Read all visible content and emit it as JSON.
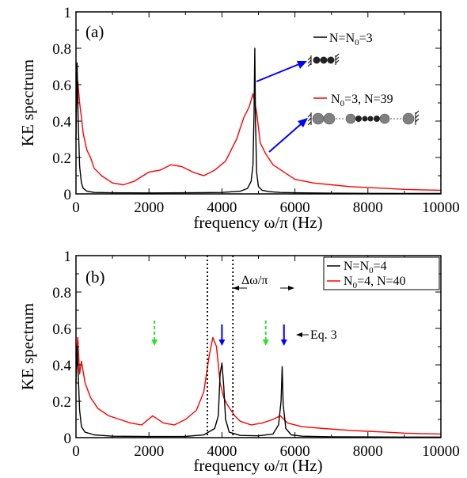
{
  "chart_data": [
    {
      "type": "line",
      "panel_label": "(a)",
      "xlabel": "frequency ω/π (Hz)",
      "ylabel": "KE spectrum",
      "xlim": [
        0,
        10000
      ],
      "ylim": [
        0,
        1
      ],
      "x_ticks": [
        "0",
        "2000",
        "4000",
        "6000",
        "8000",
        "10000"
      ],
      "y_ticks": [
        "0",
        "0.2",
        "0.4",
        "0.6",
        "0.8",
        "1"
      ],
      "series": [
        {
          "name": "N=N0=3",
          "legend_label": {
            "pre": "N=N",
            "sub": "0",
            "post": "=3"
          },
          "color": "#000000",
          "x": [
            0,
            30,
            60,
            100,
            150,
            200,
            300,
            500,
            1000,
            2000,
            3000,
            4000,
            4500,
            4700,
            4800,
            4850,
            4880,
            4900,
            4920,
            4950,
            5000,
            5100,
            5300,
            5600,
            6000,
            7000,
            8000,
            9000,
            10000
          ],
          "y": [
            0.3,
            0.72,
            0.4,
            0.15,
            0.06,
            0.03,
            0.015,
            0.008,
            0.006,
            0.005,
            0.006,
            0.008,
            0.015,
            0.03,
            0.07,
            0.16,
            0.45,
            0.8,
            0.4,
            0.12,
            0.04,
            0.02,
            0.012,
            0.008,
            0.006,
            0.004,
            0.003,
            0.002,
            0.002
          ]
        },
        {
          "name": "N0=3, N=39",
          "legend_label": {
            "pre": "N",
            "sub": "0",
            "post": "=3, N=39"
          },
          "color": "#ff0000",
          "x": [
            0,
            50,
            100,
            150,
            200,
            300,
            400,
            500,
            700,
            1000,
            1300,
            1600,
            2000,
            2300,
            2600,
            2900,
            3200,
            3500,
            3800,
            4100,
            4400,
            4600,
            4750,
            4850,
            4950,
            5050,
            5200,
            5400,
            5700,
            6000,
            6500,
            7000,
            7500,
            8000,
            8500,
            9000,
            9500,
            10000
          ],
          "y": [
            0.45,
            0.62,
            0.5,
            0.42,
            0.33,
            0.24,
            0.2,
            0.14,
            0.1,
            0.06,
            0.05,
            0.07,
            0.12,
            0.13,
            0.16,
            0.15,
            0.12,
            0.1,
            0.13,
            0.18,
            0.3,
            0.42,
            0.48,
            0.55,
            0.45,
            0.28,
            0.22,
            0.16,
            0.12,
            0.08,
            0.06,
            0.05,
            0.04,
            0.035,
            0.03,
            0.025,
            0.022,
            0.02
          ]
        }
      ],
      "annotations": [
        "N=N0=3 chain inset",
        "N0=3, N=39 chain inset"
      ]
    },
    {
      "type": "line",
      "panel_label": "(b)",
      "xlabel": "frequency ω/π (Hz)",
      "ylabel": "KE spectrum",
      "xlim": [
        0,
        10000
      ],
      "ylim": [
        0,
        1
      ],
      "x_ticks": [
        "0",
        "2000",
        "4000",
        "6000",
        "8000",
        "10000"
      ],
      "y_ticks": [
        "0",
        "0.2",
        "0.4",
        "0.6",
        "0.8",
        "1"
      ],
      "series": [
        {
          "name": "N=N0=4",
          "legend_label": {
            "pre": "N=N",
            "sub": "0",
            "post": "=4"
          },
          "color": "#000000",
          "x": [
            0,
            30,
            60,
            100,
            150,
            250,
            500,
            1000,
            2000,
            3000,
            3500,
            3800,
            3900,
            3950,
            4000,
            4050,
            4100,
            4200,
            4500,
            5000,
            5400,
            5550,
            5620,
            5650,
            5680,
            5750,
            5900,
            6200,
            7000,
            8000,
            9000,
            10000
          ],
          "y": [
            0.3,
            0.5,
            0.35,
            0.15,
            0.06,
            0.03,
            0.015,
            0.008,
            0.006,
            0.007,
            0.015,
            0.05,
            0.12,
            0.35,
            0.41,
            0.28,
            0.1,
            0.03,
            0.012,
            0.01,
            0.02,
            0.07,
            0.2,
            0.39,
            0.18,
            0.05,
            0.015,
            0.008,
            0.005,
            0.004,
            0.003,
            0.003
          ]
        },
        {
          "name": "N0=4, N=40",
          "legend_label": {
            "pre": "N",
            "sub": "0",
            "post": "=4, N=40"
          },
          "color": "#ff0000",
          "x": [
            0,
            50,
            100,
            150,
            250,
            400,
            600,
            900,
            1200,
            1500,
            1800,
            2100,
            2400,
            2700,
            3000,
            3300,
            3500,
            3650,
            3750,
            3850,
            3950,
            4050,
            4150,
            4250,
            4350,
            4500,
            4800,
            5100,
            5400,
            5600,
            5800,
            6200,
            6800,
            7500,
            8000,
            8500,
            9000,
            9500,
            10000
          ],
          "y": [
            0.45,
            0.55,
            0.35,
            0.42,
            0.3,
            0.22,
            0.16,
            0.12,
            0.1,
            0.08,
            0.07,
            0.12,
            0.08,
            0.07,
            0.1,
            0.15,
            0.25,
            0.45,
            0.55,
            0.5,
            0.3,
            0.22,
            0.18,
            0.15,
            0.12,
            0.09,
            0.07,
            0.08,
            0.1,
            0.12,
            0.08,
            0.06,
            0.05,
            0.04,
            0.035,
            0.03,
            0.025,
            0.022,
            0.02
          ]
        }
      ],
      "annotations": [
        {
          "text": "Δω/π",
          "type": "bracket",
          "x_left": 3600,
          "x_right": 4300
        },
        {
          "text": "Eq. 3",
          "type": "arrow-label"
        },
        {
          "type": "blue-arrow",
          "x": 4000,
          "color": "#0000ff"
        },
        {
          "type": "blue-arrow",
          "x": 5700,
          "color": "#0000ff"
        },
        {
          "type": "green-dashed-arrow",
          "x": 2150,
          "color": "#33dd33"
        },
        {
          "type": "green-dashed-arrow",
          "x": 5200,
          "color": "#33dd33"
        }
      ]
    }
  ]
}
